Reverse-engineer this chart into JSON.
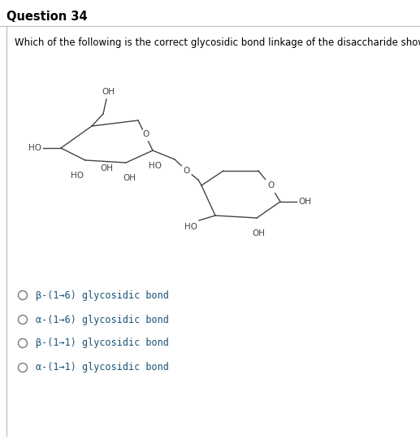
{
  "title": "Question 34",
  "question": "Which of the following is the correct glycosidic bond linkage of the disaccharide shown?",
  "options": [
    "β-(1→6) glycosidic bond",
    "α-(1→6) glycosidic bond",
    "β-(1→1) glycosidic bond",
    "α-(1→1) glycosidic bond"
  ],
  "bg_color": "#ffffff",
  "text_color": "#000000",
  "title_color": "#000000",
  "option_color": "#1a5276",
  "title_fontsize": 10.5,
  "question_fontsize": 8.5,
  "option_fontsize": 8.5,
  "chem_fontsize": 7.5,
  "border_color": "#bbbbbb",
  "line_color": "#444444",
  "lw": 1.0
}
